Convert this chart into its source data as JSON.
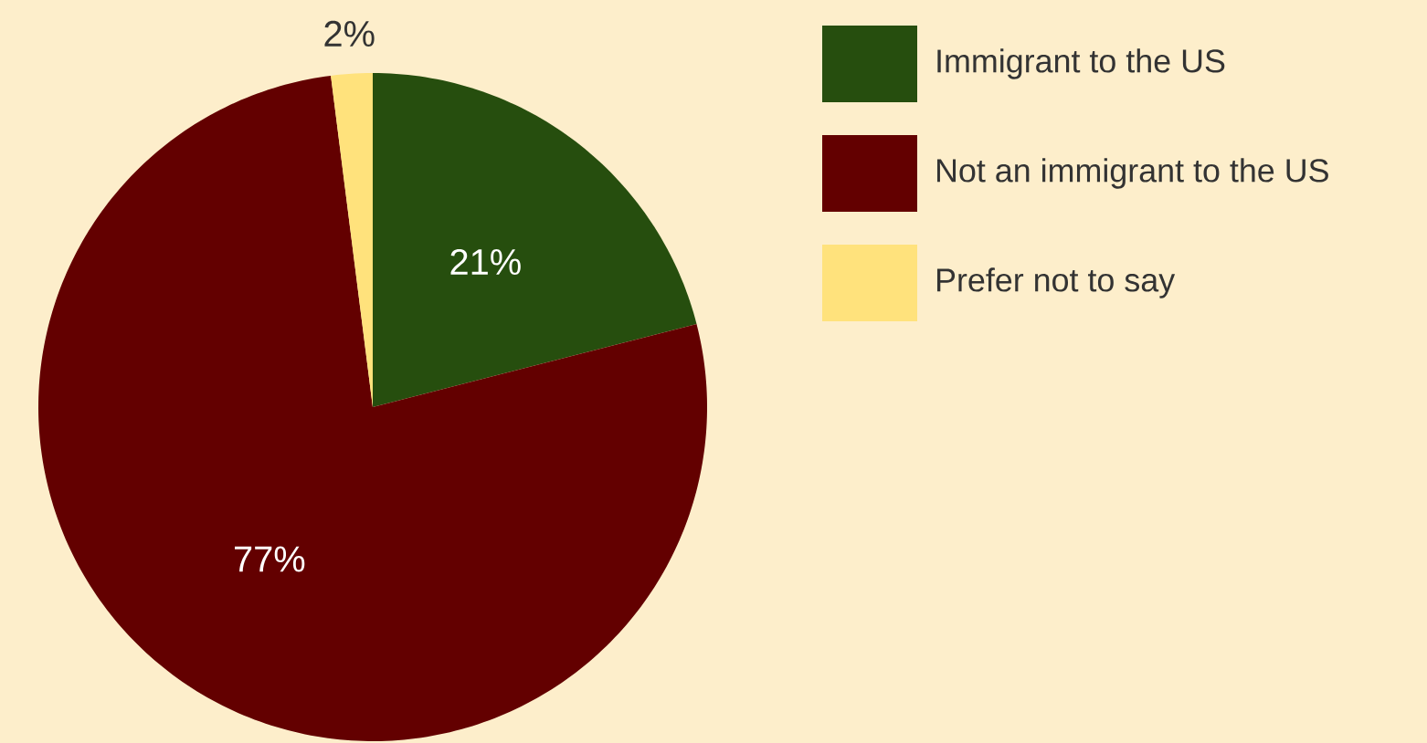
{
  "chart_data": {
    "type": "pie",
    "categories": [
      "Immigrant to the US",
      "Not an immigrant to the US",
      "Prefer not to say"
    ],
    "values": [
      21,
      77,
      2
    ],
    "colors": [
      "#264e0e",
      "#630000",
      "#ffe27c"
    ],
    "value_labels": [
      "21%",
      "77%",
      "2%"
    ],
    "legend": "top right"
  }
}
